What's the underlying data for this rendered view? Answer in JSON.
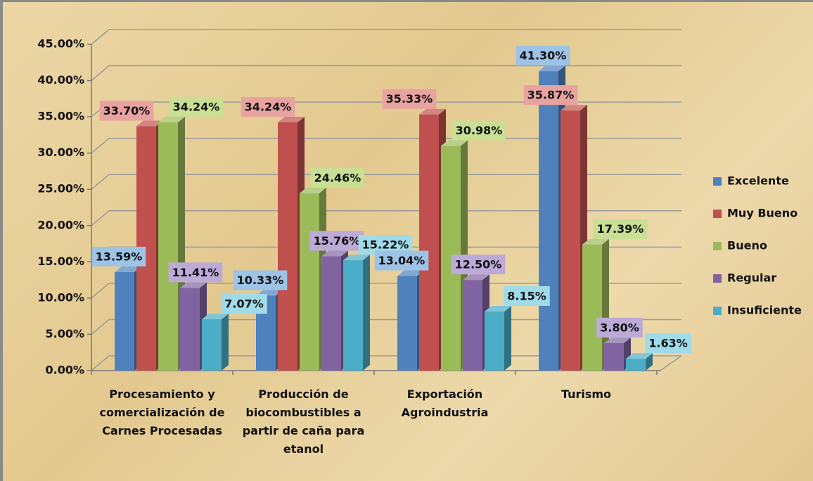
{
  "chart_data": {
    "type": "bar3d",
    "categories": [
      "Procesamiento y comercialización de Carnes Procesadas",
      "Producción de biocombustibles a partir de caña para etanol",
      "Exportación Agroindustria",
      "Turismo"
    ],
    "series": [
      {
        "name": "Excelente",
        "color": "#4f81bd",
        "label_color": "#9dc3e6",
        "values": [
          13.59,
          10.33,
          13.04,
          41.3
        ],
        "value_labels": [
          "13.59%",
          "10.33%",
          "13.04%",
          "41.30%"
        ]
      },
      {
        "name": "Muy Bueno",
        "color": "#c0504d",
        "label_color": "#e8a3a1",
        "values": [
          33.7,
          34.24,
          35.33,
          35.87
        ],
        "value_labels": [
          "33.70%",
          "34.24%",
          "35.33%",
          "35.87%"
        ]
      },
      {
        "name": "Bueno",
        "color": "#9bbb59",
        "label_color": "#c9df94",
        "values": [
          34.24,
          24.46,
          30.98,
          17.39
        ],
        "value_labels": [
          "34.24%",
          "24.46%",
          "30.98%",
          "17.39%"
        ]
      },
      {
        "name": "Regular",
        "color": "#8064a2",
        "label_color": "#bcaad8",
        "values": [
          11.41,
          15.76,
          12.5,
          3.8
        ],
        "value_labels": [
          "11.41%",
          "15.76%",
          "12.50%",
          "3.80%"
        ]
      },
      {
        "name": "Insuficiente",
        "color": "#4bacc6",
        "label_color": "#9fdbe9",
        "values": [
          7.07,
          15.22,
          8.15,
          1.63
        ],
        "value_labels": [
          "7.07%",
          "15.22%",
          "8.15%",
          "1.63%"
        ]
      }
    ],
    "ylim": [
      0,
      45
    ],
    "yticks": [
      {
        "value": 0,
        "label": "0.00%"
      },
      {
        "value": 5,
        "label": "5.00%"
      },
      {
        "value": 10,
        "label": "10.00%"
      },
      {
        "value": 15,
        "label": "15.00%"
      },
      {
        "value": 20,
        "label": "20.00%"
      },
      {
        "value": 25,
        "label": "25.00%"
      },
      {
        "value": 30,
        "label": "30.00%"
      },
      {
        "value": 35,
        "label": "35.00%"
      },
      {
        "value": 40,
        "label": "40.00%"
      },
      {
        "value": 45,
        "label": "45.00%"
      }
    ],
    "grid": true,
    "legend": "right"
  }
}
